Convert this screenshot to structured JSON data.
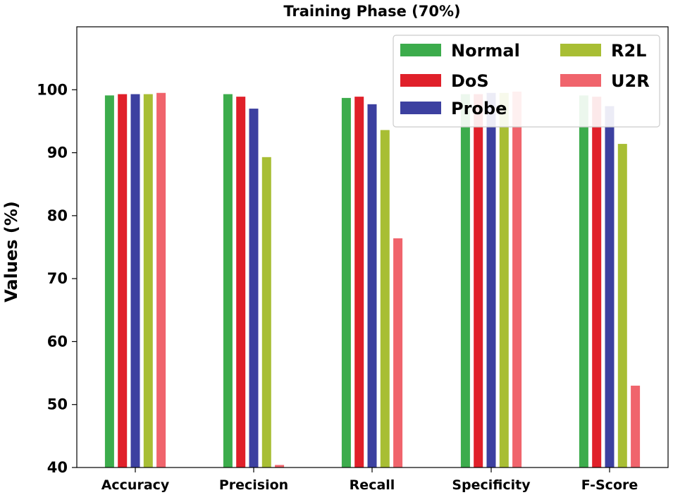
{
  "chart_data": {
    "type": "bar",
    "title": "Training Phase (70%)",
    "xlabel": "",
    "ylabel": "Values (%)",
    "ylim": [
      40,
      110
    ],
    "yticks": [
      40,
      50,
      60,
      70,
      80,
      90,
      100
    ],
    "categories": [
      "Accuracy",
      "Precision",
      "Recall",
      "Specificity",
      "F-Score"
    ],
    "legend_position": "top-right",
    "series": [
      {
        "name": "Normal",
        "color": "#3cac4c",
        "values": [
          99.1,
          99.3,
          98.7,
          99.3,
          99.1
        ]
      },
      {
        "name": "DoS",
        "color": "#e0202a",
        "values": [
          99.3,
          98.9,
          98.9,
          99.3,
          98.9
        ]
      },
      {
        "name": "Probe",
        "color": "#3c40a0",
        "values": [
          99.3,
          97.0,
          97.7,
          99.5,
          97.4
        ]
      },
      {
        "name": "R2L",
        "color": "#a8be34",
        "values": [
          99.3,
          89.3,
          93.6,
          99.5,
          91.4
        ]
      },
      {
        "name": "U2R",
        "color": "#f0646c",
        "values": [
          99.5,
          40.4,
          76.4,
          99.7,
          53.0
        ]
      }
    ]
  }
}
